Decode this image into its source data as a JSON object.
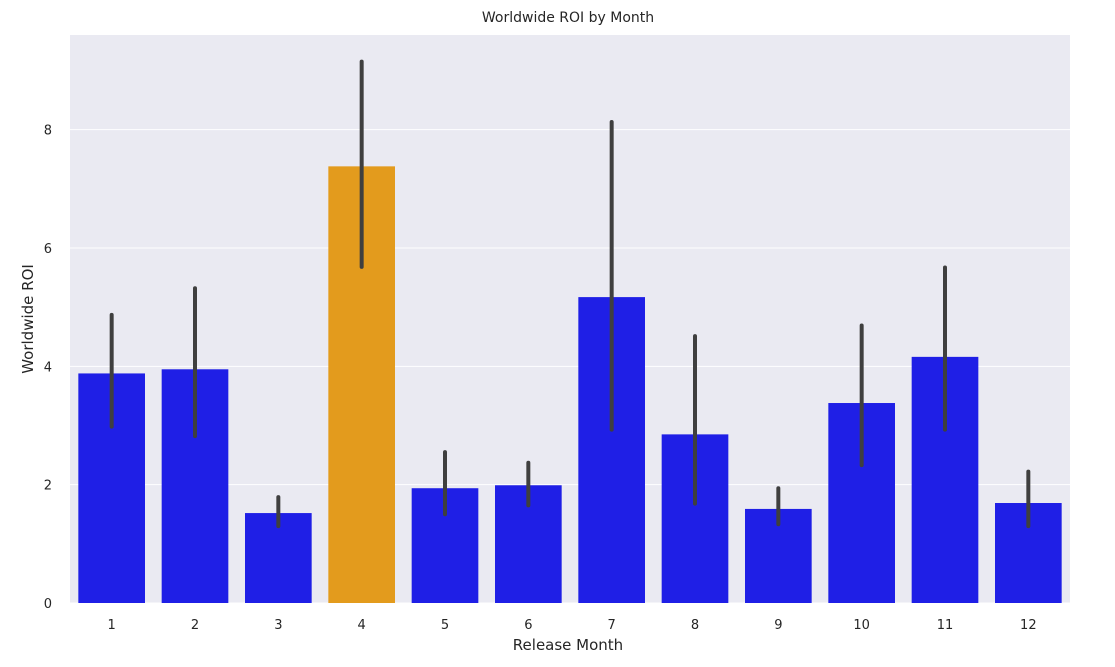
{
  "chart_data": {
    "type": "bar",
    "title": "Worldwide ROI by Month",
    "xlabel": "Release Month",
    "ylabel": "Worldwide ROI",
    "categories": [
      "1",
      "2",
      "3",
      "4",
      "5",
      "6",
      "7",
      "8",
      "9",
      "10",
      "11",
      "12"
    ],
    "values": [
      3.88,
      3.95,
      1.52,
      7.38,
      1.94,
      1.99,
      5.17,
      2.85,
      1.59,
      3.38,
      4.16,
      1.69
    ],
    "error_low": [
      2.98,
      2.82,
      1.3,
      5.68,
      1.5,
      1.65,
      2.93,
      1.68,
      1.33,
      2.33,
      2.93,
      1.3
    ],
    "error_high": [
      4.87,
      5.32,
      1.79,
      9.15,
      2.55,
      2.37,
      8.13,
      4.51,
      1.94,
      4.69,
      5.67,
      2.22
    ],
    "ylim": [
      0,
      9.6
    ],
    "yticks": [
      0,
      2,
      4,
      6,
      8
    ],
    "grid": true,
    "colors": {
      "bar": "#1f1fe6",
      "highlight": "#e39b1d",
      "highlight_category": "4",
      "error_bar": "#3f3f3f",
      "plot_background": "#eaeaf2",
      "grid": "#ffffff"
    }
  }
}
